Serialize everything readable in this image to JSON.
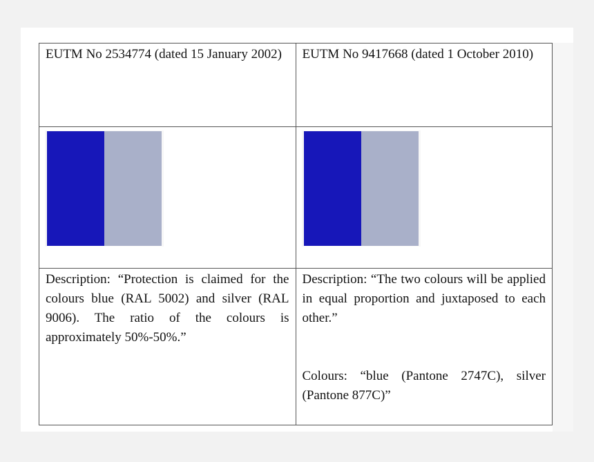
{
  "table": {
    "header": [
      "EUTM No 2534774 (dated 15 January 2002)",
      "EUTM No 9417668 (dated 1 October 2010)"
    ],
    "descriptions": [
      [
        "Description: “Protection is claimed for the colours blue (RAL 5002) and silver (RAL 9006). The ratio of the colours is approximately 50%-50%.”"
      ],
      [
        "Description: “The two colours will be applied in equal proportion and juxtaposed to each other.”",
        "Colours: “blue (Pantone 2747C), silver (Pantone 877C)”"
      ]
    ]
  }
}
